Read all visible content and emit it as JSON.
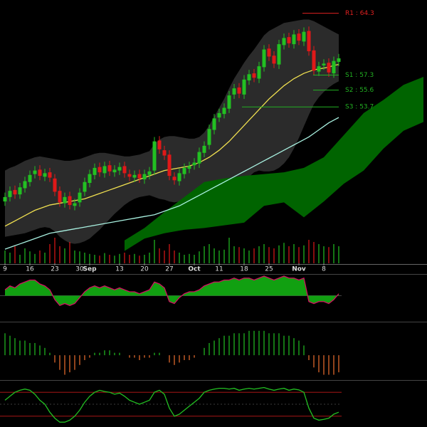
{
  "chart_data": {
    "type": "candlestick",
    "categories": [
      "9",
      null,
      null,
      null,
      null,
      "16",
      null,
      null,
      null,
      null,
      "23",
      null,
      null,
      null,
      null,
      "30",
      null,
      "Sep",
      null,
      null,
      null,
      null,
      null,
      "13",
      null,
      null,
      null,
      null,
      "20",
      null,
      null,
      null,
      null,
      "27",
      null,
      null,
      null,
      null,
      "Oct",
      null,
      null,
      null,
      null,
      "11",
      null,
      null,
      null,
      null,
      "18",
      null,
      null,
      null,
      null,
      "25",
      null,
      null,
      null,
      null,
      null,
      "Nov",
      null,
      null,
      null,
      null,
      "8",
      null,
      null,
      null
    ],
    "open": [
      43.0,
      43.5,
      44.3,
      43.8,
      44.5,
      45.2,
      46.1,
      46.6,
      45.8,
      46.3,
      45.6,
      44.2,
      42.8,
      43.6,
      42.5,
      42.9,
      44.1,
      45.1,
      46.0,
      46.9,
      46.2,
      47.1,
      46.3,
      46.5,
      47.0,
      46.1,
      45.7,
      46.1,
      45.5,
      46.0,
      46.5,
      49.9,
      48.8,
      48.3,
      45.8,
      45.3,
      46.1,
      46.7,
      47.1,
      47.3,
      48.5,
      49.4,
      51.1,
      52.5,
      52.9,
      53.5,
      55.1,
      55.9,
      55.1,
      56.7,
      57.5,
      56.9,
      58.2,
      60.3,
      59.5,
      58.5,
      60.7,
      61.6,
      60.8,
      62.0,
      61.1,
      62.3,
      60.1,
      57.7,
      58.4,
      58.7,
      57.5,
      58.8
    ],
    "high": [
      44.0,
      44.7,
      44.8,
      45.1,
      45.8,
      46.5,
      47.0,
      47.1,
      46.7,
      46.8,
      46.1,
      44.7,
      44.0,
      44.1,
      43.3,
      44.5,
      45.7,
      46.6,
      47.3,
      47.4,
      47.5,
      47.6,
      47.1,
      47.4,
      47.5,
      46.6,
      46.5,
      46.6,
      46.6,
      46.9,
      50.3,
      50.4,
      49.3,
      48.8,
      46.3,
      46.7,
      47.3,
      47.5,
      47.9,
      49.1,
      49.8,
      51.7,
      52.9,
      53.5,
      54.1,
      55.5,
      56.3,
      56.4,
      57.3,
      57.9,
      58.0,
      58.8,
      60.7,
      60.8,
      60.0,
      61.3,
      62.0,
      62.1,
      62.4,
      62.5,
      62.7,
      62.8,
      60.6,
      58.8,
      59.1,
      59.2,
      59.4,
      59.7
    ],
    "low": [
      42.5,
      43.0,
      43.3,
      43.3,
      44.0,
      44.7,
      45.6,
      45.4,
      45.3,
      45.2,
      43.6,
      42.4,
      42.3,
      42.1,
      42.0,
      42.4,
      43.6,
      44.6,
      45.5,
      45.8,
      45.7,
      45.9,
      45.8,
      46.0,
      45.7,
      45.3,
      45.2,
      45.1,
      45.0,
      45.5,
      46.0,
      48.4,
      47.7,
      45.4,
      44.9,
      44.8,
      45.6,
      46.2,
      46.6,
      46.8,
      48.0,
      48.9,
      50.6,
      52.0,
      52.4,
      53.0,
      54.6,
      54.7,
      54.6,
      56.2,
      56.5,
      56.4,
      57.7,
      58.9,
      58.1,
      58.0,
      60.2,
      60.4,
      60.3,
      60.7,
      60.6,
      59.5,
      57.3,
      57.2,
      57.9,
      57.1,
      57.0,
      58.3
    ],
    "close": [
      43.5,
      44.2,
      43.8,
      44.6,
      45.3,
      46.0,
      46.5,
      45.9,
      46.2,
      45.7,
      44.1,
      42.9,
      43.5,
      42.6,
      42.8,
      44.0,
      45.2,
      46.1,
      46.8,
      46.3,
      47.0,
      46.4,
      46.6,
      46.9,
      46.2,
      45.8,
      46.0,
      45.6,
      46.1,
      46.4,
      49.8,
      48.9,
      48.2,
      45.9,
      45.4,
      46.2,
      46.8,
      47.0,
      47.4,
      48.6,
      49.3,
      51.2,
      52.4,
      53.0,
      53.6,
      55.0,
      55.8,
      55.2,
      56.8,
      57.4,
      57.0,
      58.3,
      60.2,
      59.4,
      58.6,
      60.8,
      61.5,
      60.9,
      61.9,
      61.2,
      62.2,
      60.0,
      57.8,
      58.3,
      58.6,
      57.6,
      58.9,
      59.2
    ],
    "up_color": "#22c022",
    "down_color": "#e01818",
    "ylim": [
      36,
      65.8
    ],
    "band": {
      "color": "#333333",
      "upper": [
        46.5,
        46.8,
        47.0,
        47.3,
        47.6,
        47.8,
        48.0,
        48.1,
        48.0,
        47.9,
        47.8,
        47.7,
        47.6,
        47.6,
        47.7,
        47.8,
        48.0,
        48.2,
        48.4,
        48.5,
        48.5,
        48.4,
        48.3,
        48.2,
        48.1,
        48.1,
        48.2,
        48.3,
        48.5,
        48.7,
        49.5,
        50.0,
        50.3,
        50.4,
        50.4,
        50.3,
        50.2,
        50.1,
        50.1,
        50.3,
        50.8,
        51.6,
        52.6,
        53.6,
        54.6,
        55.8,
        56.9,
        57.8,
        58.7,
        59.5,
        60.2,
        61.0,
        61.8,
        62.3,
        62.6,
        62.9,
        63.2,
        63.3,
        63.4,
        63.5,
        63.6,
        63.6,
        63.4,
        63.1,
        62.8,
        62.5,
        62.2,
        61.9
      ],
      "lower": [
        39.0,
        39.1,
        39.2,
        39.3,
        39.4,
        39.6,
        39.8,
        40.0,
        40.1,
        40.0,
        39.6,
        39.0,
        38.6,
        38.3,
        38.2,
        38.3,
        38.5,
        38.8,
        39.3,
        39.8,
        40.4,
        41.0,
        41.6,
        42.1,
        42.6,
        43.0,
        43.3,
        43.5,
        43.6,
        43.7,
        43.5,
        43.3,
        43.2,
        43.0,
        42.9,
        43.0,
        43.2,
        43.5,
        43.9,
        44.3,
        44.6,
        44.7,
        44.6,
        44.6,
        44.6,
        44.6,
        44.8,
        45.1,
        45.4,
        45.8,
        46.3,
        46.5,
        46.4,
        46.4,
        46.5,
        46.8,
        47.3,
        48.0,
        49.0,
        50.2,
        51.5,
        52.8,
        54.0,
        54.8,
        55.4,
        55.9,
        56.3,
        56.6
      ]
    },
    "cloud": {
      "color": "#006400",
      "x": [
        24,
        28,
        32,
        36,
        40,
        44,
        48,
        52,
        56,
        60,
        64,
        68,
        72,
        76,
        80,
        84
      ],
      "upper": [
        38.6,
        40.0,
        41.8,
        43.5,
        45.2,
        45.6,
        45.9,
        46.1,
        46.3,
        46.8,
        48.0,
        50.5,
        53.0,
        54.5,
        56.2,
        57.1
      ],
      "lower": [
        37.4,
        38.8,
        39.4,
        39.8,
        40.0,
        40.3,
        40.6,
        42.5,
        42.9,
        41.2,
        43.0,
        45.0,
        46.5,
        49.0,
        51.0,
        52.0
      ]
    },
    "overlays": [
      {
        "color": "#f0e050",
        "values": [
          40.2,
          40.5,
          40.8,
          41.1,
          41.4,
          41.7,
          42.0,
          42.2,
          42.4,
          42.6,
          42.7,
          42.8,
          42.9,
          43.0,
          43.1,
          43.2,
          43.3,
          43.5,
          43.7,
          43.9,
          44.1,
          44.3,
          44.5,
          44.7,
          44.9,
          45.1,
          45.3,
          45.5,
          45.7,
          45.9,
          46.1,
          46.3,
          46.5,
          46.6,
          46.7,
          46.8,
          46.9,
          47.0,
          47.2,
          47.4,
          47.7,
          48.0,
          48.4,
          48.8,
          49.3,
          49.8,
          50.4,
          51.0,
          51.6,
          52.2,
          52.8,
          53.4,
          54.0,
          54.6,
          55.1,
          55.6,
          56.1,
          56.5,
          56.9,
          57.2,
          57.5,
          57.7,
          57.9,
          58.0,
          58.1,
          58.2,
          58.4,
          58.5
        ]
      },
      {
        "color": "#a8f0e0",
        "values": [
          37.6,
          37.8,
          38.0,
          38.2,
          38.4,
          38.6,
          38.8,
          39.0,
          39.2,
          39.4,
          39.5,
          39.6,
          39.7,
          39.8,
          39.9,
          40.0,
          40.1,
          40.2,
          40.3,
          40.4,
          40.5,
          40.6,
          40.7,
          40.8,
          40.9,
          41.0,
          41.1,
          41.2,
          41.3,
          41.4,
          41.5,
          41.7,
          41.9,
          42.1,
          42.3,
          42.5,
          42.8,
          43.1,
          43.4,
          43.7,
          44.0,
          44.3,
          44.6,
          44.9,
          45.2,
          45.5,
          45.8,
          46.1,
          46.4,
          46.7,
          47.0,
          47.3,
          47.6,
          47.9,
          48.2,
          48.5,
          48.8,
          49.1,
          49.4,
          49.7,
          50.0,
          50.3,
          50.7,
          51.1,
          51.5,
          51.9,
          52.2,
          52.5
        ]
      }
    ],
    "pivots": [
      {
        "label": "R1 : 64.3",
        "value": 64.3,
        "color": "#e02020"
      },
      {
        "label": "S1 : 57.3",
        "value": 57.3,
        "color": "#22b022"
      },
      {
        "label": "S2 : 55.6",
        "value": 55.6,
        "color": "#22b022"
      },
      {
        "label": "S3 : 53.7",
        "value": 53.7,
        "color": "#22b022"
      }
    ],
    "volume": {
      "ylim": [
        0,
        100
      ],
      "values": [
        30,
        25,
        40,
        20,
        35,
        28,
        22,
        30,
        25,
        45,
        60,
        40,
        35,
        50,
        30,
        28,
        25,
        22,
        20,
        18,
        24,
        20,
        18,
        22,
        25,
        20,
        22,
        18,
        20,
        25,
        55,
        35,
        30,
        45,
        30,
        25,
        20,
        22,
        20,
        28,
        40,
        45,
        35,
        30,
        32,
        60,
        40,
        38,
        35,
        30,
        35,
        40,
        45,
        38,
        35,
        42,
        48,
        40,
        45,
        38,
        42,
        55,
        50,
        45,
        40,
        38,
        45,
        40
      ]
    },
    "indicators": [
      {
        "type": "area",
        "ylim": [
          -0.6,
          1.0
        ],
        "color": "#11a011",
        "neg_color": "#d01060",
        "values": [
          0.3,
          0.5,
          0.4,
          0.6,
          0.7,
          0.8,
          0.8,
          0.6,
          0.5,
          0.3,
          -0.2,
          -0.5,
          -0.4,
          -0.5,
          -0.4,
          -0.1,
          0.2,
          0.4,
          0.5,
          0.4,
          0.5,
          0.4,
          0.3,
          0.4,
          0.3,
          0.2,
          0.2,
          0.1,
          0.2,
          0.3,
          0.7,
          0.6,
          0.4,
          -0.3,
          -0.4,
          -0.1,
          0.1,
          0.2,
          0.2,
          0.3,
          0.5,
          0.6,
          0.7,
          0.7,
          0.8,
          0.8,
          0.9,
          0.8,
          0.9,
          0.9,
          0.8,
          0.9,
          1.0,
          0.9,
          0.8,
          0.9,
          1.0,
          0.9,
          0.9,
          0.8,
          0.9,
          -0.3,
          -0.4,
          -0.3,
          -0.3,
          -0.4,
          -0.2,
          0.1
        ]
      },
      {
        "type": "histogram",
        "ylim": [
          -0.9,
          1.2
        ],
        "color": "#22c022",
        "neg_color": "#f07030",
        "values": [
          0.9,
          0.8,
          0.7,
          0.6,
          0.6,
          0.5,
          0.5,
          0.4,
          0.3,
          0.1,
          -0.3,
          -0.6,
          -0.8,
          -0.7,
          -0.6,
          -0.4,
          -0.2,
          -0.1,
          0.1,
          0.1,
          0.2,
          0.2,
          0.1,
          0.1,
          0.0,
          -0.1,
          -0.1,
          -0.2,
          -0.1,
          -0.1,
          0.1,
          0.1,
          0.0,
          -0.3,
          -0.4,
          -0.3,
          -0.2,
          -0.2,
          -0.1,
          0.0,
          0.3,
          0.5,
          0.6,
          0.7,
          0.8,
          0.8,
          0.9,
          0.9,
          0.9,
          1.0,
          1.0,
          1.0,
          1.0,
          0.9,
          0.9,
          0.9,
          0.8,
          0.8,
          0.7,
          0.6,
          0.4,
          -0.2,
          -0.5,
          -0.7,
          -0.8,
          -0.8,
          -0.8,
          -0.7
        ]
      },
      {
        "type": "line",
        "ylim": [
          0,
          100
        ],
        "color": "#22c022",
        "levels": [
          20,
          80
        ],
        "level_color": "#c01818",
        "values": [
          60,
          70,
          80,
          85,
          88,
          85,
          75,
          60,
          50,
          30,
          15,
          5,
          5,
          10,
          20,
          35,
          55,
          70,
          80,
          85,
          82,
          80,
          75,
          78,
          70,
          60,
          55,
          50,
          55,
          60,
          80,
          85,
          75,
          40,
          20,
          25,
          35,
          45,
          55,
          65,
          80,
          85,
          88,
          90,
          90,
          88,
          90,
          85,
          88,
          90,
          88,
          90,
          92,
          88,
          85,
          88,
          90,
          85,
          88,
          86,
          80,
          40,
          15,
          10,
          12,
          15,
          25,
          30
        ]
      }
    ]
  }
}
